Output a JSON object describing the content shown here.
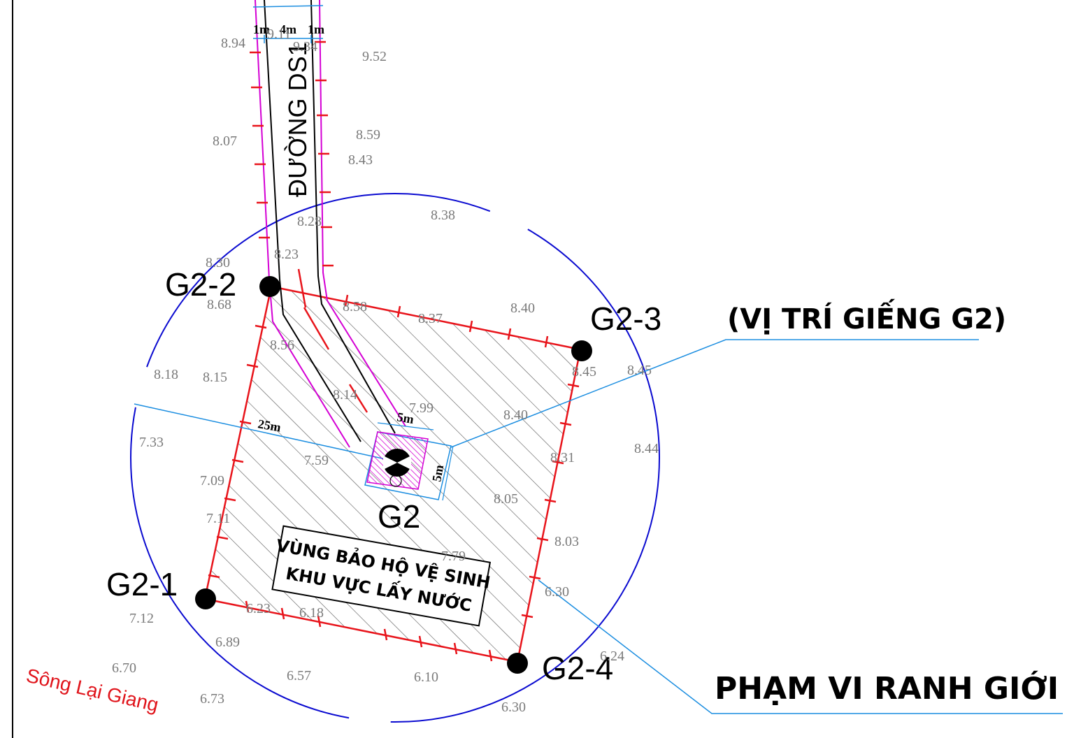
{
  "map": {
    "road_label": "ĐƯỜNG DS1",
    "road_widths": [
      "1m",
      "4m",
      "1m"
    ],
    "well_label": "G2",
    "well_dims": [
      "5m",
      "5m"
    ],
    "radius_label": "25m",
    "corner_points": [
      "G2-2",
      "G2-3",
      "G2-1",
      "G2-4"
    ],
    "zone_label_lines": [
      "VÙNG BẢO HỘ VỆ SINH",
      "KHU VỰC LẤY NƯỚC"
    ],
    "callout_well": "(VỊ TRÍ GIẾNG G2)",
    "callout_boundary": "PHẠM VI RANH GIỚI QH",
    "river_label": "Sông Lại Giang",
    "elevations": [
      "8.94",
      "9.11",
      "9.34",
      "9.52",
      "8.07",
      "8.59",
      "8.43",
      "8.38",
      "8.28",
      "8.30",
      "8.23",
      "8.68",
      "8.58",
      "8.37",
      "8.40",
      "8.56",
      "8.18",
      "8.15",
      "8.45",
      "8.45",
      "8.14",
      "7.99",
      "8.40",
      "7.33",
      "7.59",
      "8.44",
      "7.09",
      "8.31",
      "8.05",
      "7.11",
      "8.03",
      "7.79",
      "7.12",
      "6.23",
      "6.18",
      "6.30",
      "6.89",
      "6.70",
      "6.57",
      "6.10",
      "6.24",
      "6.73",
      "6.30"
    ]
  },
  "colors": {
    "boundary": "#e8141b",
    "road": "#000000",
    "sidewalk": "#d400d4",
    "circle": "#0a0ad0",
    "leader": "#1a8de0",
    "elevation": "#7a7a7a"
  }
}
